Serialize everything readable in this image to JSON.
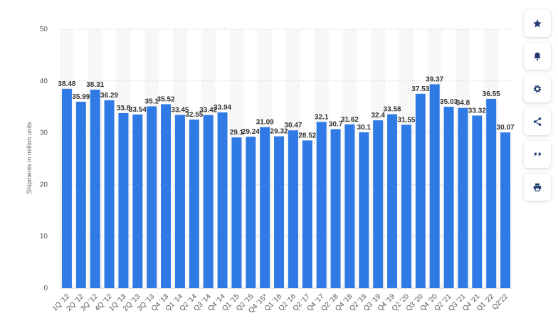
{
  "chart_data": {
    "type": "bar",
    "ylabel": "Shipments in million units",
    "ylim": [
      0,
      50
    ],
    "yticks": [
      0,
      10,
      20,
      30,
      40,
      50
    ],
    "grid": true,
    "bar_color": "#2f7ae5",
    "categories": [
      "1Q '12",
      "2Q '12",
      "3Q '12",
      "4Q '12",
      "1Q '13",
      "2Q '13",
      "3Q '13",
      "Q4 '13",
      "Q1 '14",
      "Q2 '14",
      "Q3 '14",
      "Q4 '14",
      "Q1 '15",
      "Q2 '15",
      "Q4 '15*",
      "Q1 '16",
      "Q2 '16",
      "Q2 '17",
      "Q4 '17",
      "Q2 '18",
      "Q4 '18",
      "Q2 '19",
      "Q3 '19",
      "Q4 '19",
      "Q2 '20",
      "Q3 '20",
      "Q4 '20",
      "Q2 '21",
      "Q3 '21",
      "Q4 '21",
      "Q1 '22",
      "Q2'22"
    ],
    "values": [
      38.48,
      35.99,
      38.31,
      36.29,
      33.8,
      33.54,
      35.1,
      35.52,
      33.45,
      32.55,
      33.42,
      33.94,
      29.1,
      29.24,
      31.09,
      29.32,
      30.47,
      28.52,
      32.1,
      30.7,
      31.62,
      30.1,
      32.4,
      33.58,
      31.55,
      37.53,
      39.37,
      35.03,
      34.8,
      33.32,
      36.55,
      30.07
    ],
    "value_labels": [
      "38.48",
      "35.99",
      "38.31",
      "36.29",
      "33.8",
      "33.54",
      "35.1",
      "35.52",
      "33.45",
      "32.55",
      "33.42",
      "33.94",
      "29.1",
      "29.24",
      "31.09",
      "29.32",
      "30.47",
      "28.52",
      "32.1",
      "30.7",
      "31.62",
      "30.1",
      "32.4",
      "33.58",
      "31.55",
      "37.53",
      "39.37",
      "35.03",
      "34.8",
      "33.32",
      "36.55",
      "30.07"
    ]
  },
  "toolbar": [
    {
      "icon": "star-icon",
      "name": "favorite-button"
    },
    {
      "icon": "bell-icon",
      "name": "notification-button"
    },
    {
      "icon": "gear-icon",
      "name": "settings-button"
    },
    {
      "icon": "share-icon",
      "name": "share-button"
    },
    {
      "icon": "quote-icon",
      "name": "cite-button"
    },
    {
      "icon": "print-icon",
      "name": "print-button"
    }
  ]
}
